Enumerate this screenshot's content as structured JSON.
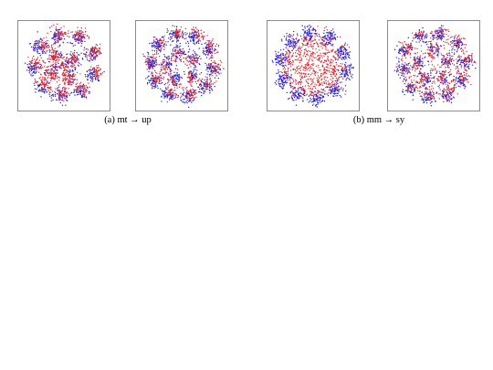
{
  "figure": {
    "subfigures": [
      {
        "caption": "(a) mt → up",
        "panels": [
          "left",
          "right"
        ]
      },
      {
        "caption": "(b) mm → sy",
        "panels": [
          "left",
          "right"
        ]
      }
    ]
  },
  "colors": {
    "source": "#1f1fd6",
    "target": "#e3262a",
    "frame": "#8c8c8c"
  },
  "chart_data": [
    {
      "type": "scatter",
      "title": "",
      "xlabel": "",
      "ylabel": "",
      "grid": false,
      "series": [
        {
          "color": "#1f1fd6"
        },
        {
          "color": "#e3262a"
        }
      ]
    },
    {
      "type": "scatter",
      "title": "",
      "xlabel": "",
      "ylabel": "",
      "grid": false,
      "series": [
        {
          "color": "#1f1fd6"
        },
        {
          "color": "#e3262a"
        }
      ]
    },
    {
      "type": "scatter",
      "title": "",
      "xlabel": "",
      "ylabel": "",
      "grid": false,
      "series": [
        {
          "color": "#1f1fd6"
        },
        {
          "color": "#e3262a"
        }
      ]
    },
    {
      "type": "scatter",
      "title": "",
      "xlabel": "",
      "ylabel": "",
      "grid": false,
      "series": [
        {
          "color": "#1f1fd6"
        },
        {
          "color": "#e3262a"
        }
      ]
    }
  ]
}
